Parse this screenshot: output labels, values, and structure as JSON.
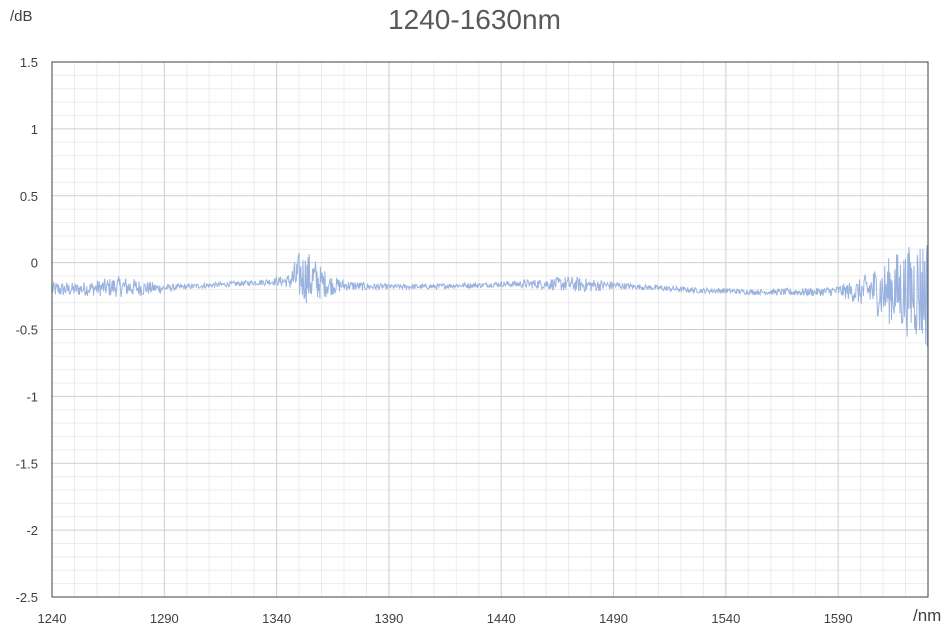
{
  "chart_data": {
    "type": "line",
    "title": "1240-1630nm",
    "xlabel": "/nm",
    "ylabel": "/dB",
    "xlim": [
      1240,
      1630
    ],
    "ylim": [
      -2.5,
      1.5
    ],
    "grid": true,
    "xticks": [
      1240,
      1290,
      1340,
      1390,
      1440,
      1490,
      1540,
      1590
    ],
    "xtick_labels": [
      "1240",
      "1290",
      "1340",
      "1390",
      "1440",
      "1490",
      "1540",
      "1590"
    ],
    "yticks": [
      1.5,
      1,
      0.5,
      0,
      -0.5,
      -1,
      -1.5,
      -2,
      -2.5
    ],
    "ytick_labels": [
      "1.5",
      "1",
      "0.5",
      "0",
      "-0.5",
      "-1",
      "-1.5",
      "-2",
      "-2.5"
    ],
    "series": [
      {
        "color": "#8eaadb",
        "x": [
          1240,
          1250,
          1260,
          1270,
          1280,
          1290,
          1300,
          1310,
          1320,
          1330,
          1340,
          1345,
          1350,
          1355,
          1360,
          1365,
          1370,
          1380,
          1390,
          1400,
          1410,
          1420,
          1430,
          1440,
          1450,
          1460,
          1470,
          1480,
          1490,
          1500,
          1510,
          1520,
          1530,
          1540,
          1550,
          1560,
          1570,
          1580,
          1590,
          1600,
          1605,
          1610,
          1615,
          1620,
          1625,
          1630
        ],
        "y_center": [
          -0.2,
          -0.2,
          -0.19,
          -0.18,
          -0.19,
          -0.19,
          -0.18,
          -0.17,
          -0.16,
          -0.15,
          -0.14,
          -0.14,
          -0.1,
          -0.12,
          -0.15,
          -0.17,
          -0.17,
          -0.18,
          -0.18,
          -0.18,
          -0.18,
          -0.17,
          -0.17,
          -0.16,
          -0.16,
          -0.16,
          -0.16,
          -0.17,
          -0.17,
          -0.18,
          -0.19,
          -0.2,
          -0.21,
          -0.21,
          -0.22,
          -0.22,
          -0.22,
          -0.22,
          -0.21,
          -0.22,
          -0.2,
          -0.22,
          -0.2,
          -0.22,
          -0.2,
          -0.22
        ],
        "y_spread": [
          0.06,
          0.05,
          0.06,
          0.08,
          0.06,
          0.03,
          0.02,
          0.02,
          0.02,
          0.02,
          0.03,
          0.05,
          0.18,
          0.2,
          0.12,
          0.07,
          0.04,
          0.03,
          0.02,
          0.02,
          0.02,
          0.02,
          0.02,
          0.02,
          0.03,
          0.04,
          0.06,
          0.05,
          0.03,
          0.02,
          0.02,
          0.02,
          0.02,
          0.02,
          0.02,
          0.02,
          0.03,
          0.03,
          0.04,
          0.1,
          0.16,
          0.22,
          0.28,
          0.33,
          0.38,
          0.45
        ]
      }
    ]
  }
}
